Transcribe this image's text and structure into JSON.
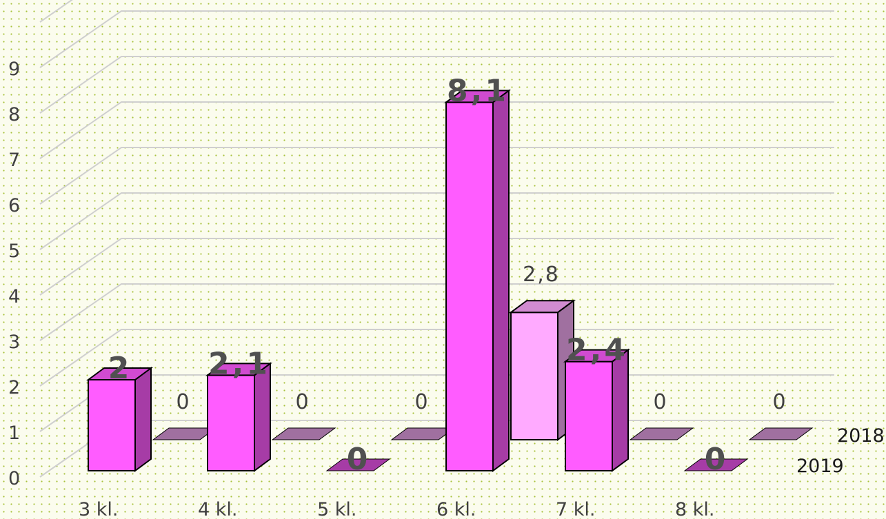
{
  "chart_data": {
    "type": "bar",
    "style": "3d-clustered-column",
    "categories": [
      "3 kl.",
      "4 kl.",
      "5 kl.",
      "6 kl.",
      "7 kl.",
      "8 kl."
    ],
    "series": [
      {
        "name": "2019",
        "values": [
          2,
          2.1,
          0,
          8.1,
          2.4,
          0
        ],
        "labels": [
          "2",
          "2,1",
          "0",
          "8,1",
          "2,4",
          "0"
        ],
        "color": "#ff5cff",
        "side_color": "#a63ca6"
      },
      {
        "name": "2018",
        "values": [
          0,
          0,
          0,
          2.8,
          0,
          0
        ],
        "labels": [
          "0",
          "0",
          "0",
          "2,8",
          "0",
          "0"
        ],
        "color": "#ffaaff",
        "side_color": "#a070a0"
      }
    ],
    "y_ticks": [
      "0",
      "1",
      "2",
      "3",
      "4",
      "5",
      "6",
      "7",
      "8",
      "9"
    ],
    "ylim": [
      0,
      10
    ],
    "grid": true,
    "legend": "series names at right depth axis",
    "title": "",
    "xlabel": "",
    "ylabel": ""
  }
}
